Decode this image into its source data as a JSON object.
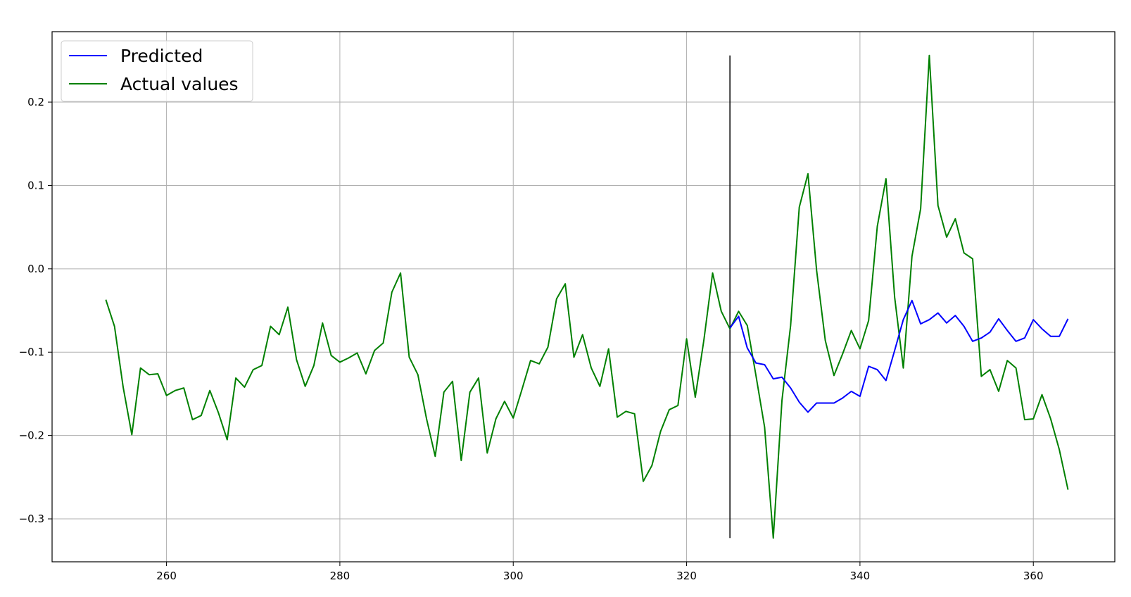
{
  "chart_data": {
    "type": "line",
    "title": "",
    "xlabel": "",
    "ylabel": "",
    "xlim": [
      246.8,
      369.4
    ],
    "ylim": [
      -0.3515,
      0.2845
    ],
    "xticks": [
      260,
      280,
      300,
      320,
      340,
      360
    ],
    "yticks": [
      -0.3,
      -0.2,
      -0.1,
      0.0,
      0.1,
      0.2
    ],
    "xtick_labels": [
      "260",
      "280",
      "300",
      "320",
      "340",
      "360"
    ],
    "ytick_labels": [
      "−0.3",
      "−0.2",
      "−0.1",
      "0.0",
      "0.1",
      "0.2"
    ],
    "grid": true,
    "legend_position": "top-left",
    "vline": {
      "x": 325,
      "ymin": -0.323,
      "ymax": 0.256,
      "color": "#000000"
    },
    "series": [
      {
        "name": "Predicted",
        "color": "#0000ff",
        "x_start": 325,
        "values": [
          -0.071,
          -0.057,
          -0.095,
          -0.113,
          -0.115,
          -0.132,
          -0.13,
          -0.143,
          -0.16,
          -0.172,
          -0.161,
          -0.161,
          -0.161,
          -0.155,
          -0.147,
          -0.153,
          -0.117,
          -0.121,
          -0.134,
          -0.098,
          -0.061,
          -0.038,
          -0.066,
          -0.061,
          -0.053,
          -0.065,
          -0.056,
          -0.069,
          -0.087,
          -0.083,
          -0.076,
          -0.06,
          -0.074,
          -0.087,
          -0.083,
          -0.061,
          -0.072,
          -0.081,
          -0.081,
          -0.06
        ]
      },
      {
        "name": "Actual values",
        "color": "#008000",
        "x_start": 253,
        "values": [
          -0.037,
          -0.069,
          -0.142,
          -0.199,
          -0.119,
          -0.127,
          -0.126,
          -0.152,
          -0.146,
          -0.143,
          -0.181,
          -0.176,
          -0.146,
          -0.173,
          -0.205,
          -0.131,
          -0.142,
          -0.121,
          -0.116,
          -0.069,
          -0.079,
          -0.046,
          -0.109,
          -0.141,
          -0.116,
          -0.065,
          -0.104,
          -0.112,
          -0.107,
          -0.101,
          -0.126,
          -0.098,
          -0.089,
          -0.028,
          -0.005,
          -0.106,
          -0.127,
          -0.18,
          -0.225,
          -0.148,
          -0.135,
          -0.23,
          -0.148,
          -0.131,
          -0.221,
          -0.18,
          -0.159,
          -0.179,
          -0.145,
          -0.11,
          -0.114,
          -0.094,
          -0.036,
          -0.018,
          -0.106,
          -0.079,
          -0.119,
          -0.141,
          -0.096,
          -0.178,
          -0.171,
          -0.174,
          -0.255,
          -0.236,
          -0.195,
          -0.169,
          -0.164,
          -0.084,
          -0.154,
          -0.085,
          -0.005,
          -0.051,
          -0.072,
          -0.051,
          -0.068,
          -0.128,
          -0.19,
          -0.323,
          -0.158,
          -0.068,
          0.074,
          0.114,
          -0.002,
          -0.086,
          -0.128,
          -0.102,
          -0.074,
          -0.096,
          -0.062,
          0.051,
          0.108,
          -0.034,
          -0.119,
          0.015,
          0.072,
          0.256,
          0.076,
          0.038,
          0.06,
          0.019,
          0.012,
          -0.129,
          -0.121,
          -0.147,
          -0.11,
          -0.119,
          -0.181,
          -0.18,
          -0.151,
          -0.18,
          -0.217,
          -0.265
        ]
      }
    ]
  }
}
